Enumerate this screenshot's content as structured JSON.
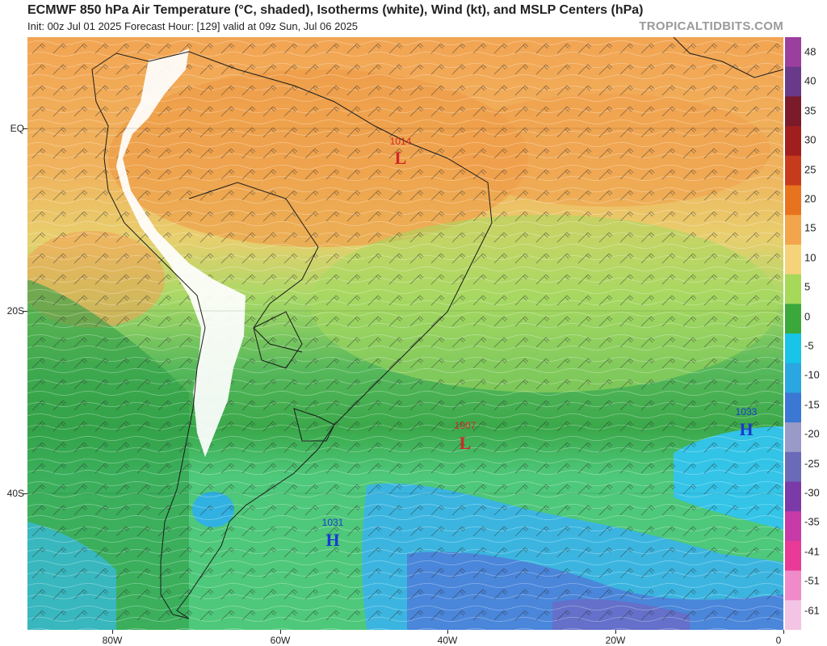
{
  "header": {
    "title": "ECMWF 850 hPa Air Temperature (°C, shaded), Isotherms (white), Wind (kt), and MSLP Centers (hPa)",
    "subtitle": "Init: 00z Jul 01 2025   Forecast Hour: [129]   valid at 09z Sun, Jul 06 2025",
    "brand": "TROPICALTIDBITS.COM"
  },
  "axes": {
    "lat_labels": [
      "EQ",
      "20S",
      "40S"
    ],
    "lon_labels": [
      "80W",
      "60W",
      "40W",
      "20W",
      "0"
    ]
  },
  "colorbar": {
    "labels": [
      "48",
      "40",
      "35",
      "30",
      "25",
      "20",
      "15",
      "10",
      "5",
      "0",
      "-5",
      "-10",
      "-15",
      "-20",
      "-25",
      "-30",
      "-35",
      "-41",
      "-51",
      "-61"
    ],
    "colors": [
      "#9b3f9e",
      "#6a3a8a",
      "#7a1a2a",
      "#a01e1e",
      "#c83a1c",
      "#e8731e",
      "#f2a54a",
      "#f6d27a",
      "#a6d85a",
      "#3aa83a",
      "#18c4e8",
      "#2aa6e0",
      "#3a78d4",
      "#9a9ac8",
      "#6a6ab8",
      "#7a3aa8",
      "#c83aa8",
      "#e83a96",
      "#f08ac8",
      "#f4c4e4"
    ]
  },
  "pressure_centers": [
    {
      "type": "L",
      "value": "1014",
      "color": "#d02828"
    },
    {
      "type": "L",
      "value": "1007",
      "color": "#d02828"
    },
    {
      "type": "H",
      "value": "1031",
      "color": "#1a3ad0"
    },
    {
      "type": "H",
      "value": "1033",
      "color": "#1a3ad0"
    }
  ]
}
